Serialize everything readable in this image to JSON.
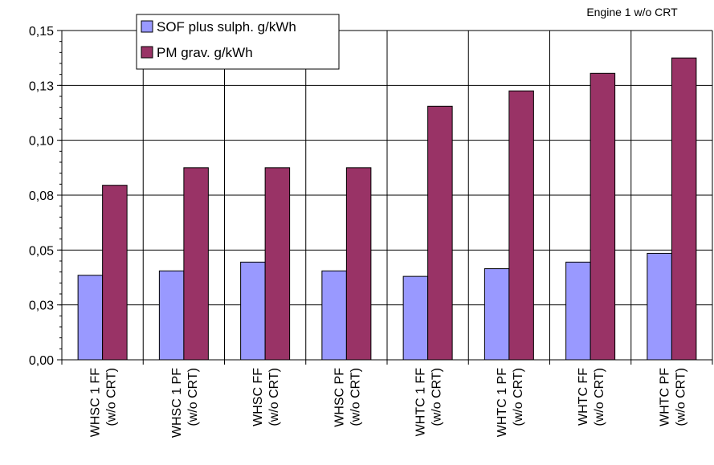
{
  "chart_data": {
    "type": "bar",
    "annotation": "Engine 1 w/o CRT",
    "categories": [
      [
        "WHSC 1 FF",
        "(w/o CRT)"
      ],
      [
        "WHSC 1 PF",
        "(w/o CRT)"
      ],
      [
        "WHSC  FF",
        "(w/o CRT)"
      ],
      [
        "WHSC  PF",
        "(w/o CRT)"
      ],
      [
        "WHTC 1 FF",
        "(w/o CRT)"
      ],
      [
        "WHTC 1 PF",
        "(w/o CRT)"
      ],
      [
        "WHTC  FF",
        "(w/o CRT)"
      ],
      [
        "WHTC  PF",
        "(w/o CRT)"
      ]
    ],
    "series": [
      {
        "name": "SOF plus sulph. g/kWh",
        "color": "#9999ff",
        "values": [
          0.0385,
          0.0405,
          0.0445,
          0.0405,
          0.038,
          0.0415,
          0.0445,
          0.0485
        ]
      },
      {
        "name": "PM grav. g/kWh",
        "color": "#993366",
        "values": [
          0.0795,
          0.0875,
          0.0875,
          0.0875,
          0.1155,
          0.1225,
          0.1305,
          0.1375
        ]
      }
    ],
    "ylim": [
      0,
      0.15
    ],
    "y_ticks": [
      0,
      0.025,
      0.05,
      0.075,
      0.1,
      0.125,
      0.15
    ],
    "y_tick_labels": [
      "0,00",
      "0,03",
      "0,05",
      "0,08",
      "0,10",
      "0,13",
      "0,15"
    ],
    "legend_placement": "top-left",
    "grid": true
  }
}
